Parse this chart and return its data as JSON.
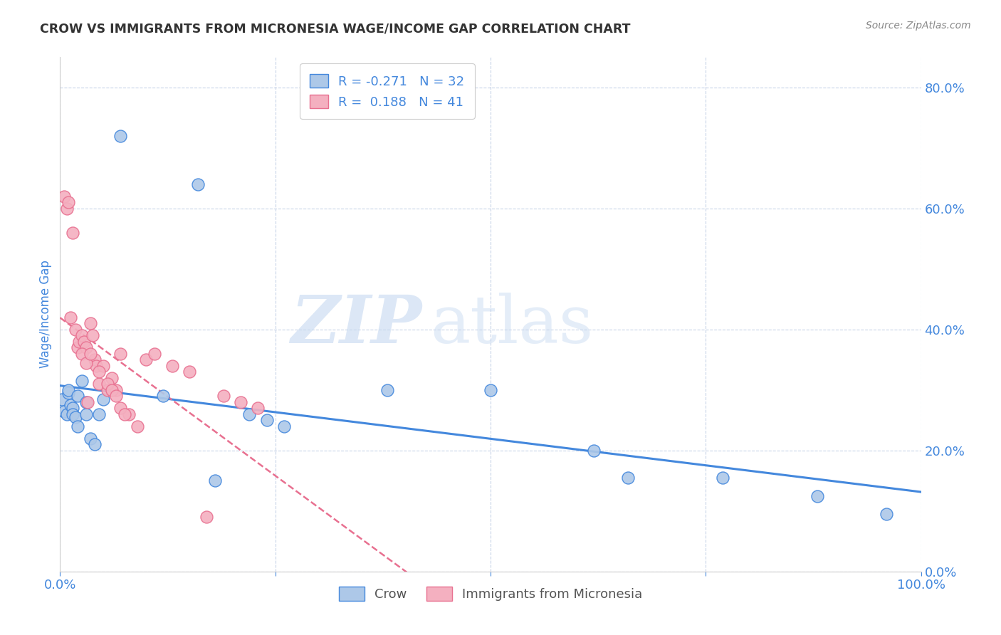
{
  "title": "CROW VS IMMIGRANTS FROM MICRONESIA WAGE/INCOME GAP CORRELATION CHART",
  "source": "Source: ZipAtlas.com",
  "ylabel": "Wage/Income Gap",
  "crow_R": -0.271,
  "crow_N": 32,
  "micronesia_R": 0.188,
  "micronesia_N": 41,
  "crow_color": "#adc8e8",
  "micronesia_color": "#f4b0c0",
  "crow_line_color": "#4488dd",
  "micronesia_line_color": "#e87090",
  "title_color": "#333333",
  "axis_label_color": "#4488dd",
  "tick_color": "#4488dd",
  "grid_color": "#c8d4e8",
  "background_color": "#ffffff",
  "crow_scatter_x": [
    0.002,
    0.005,
    0.008,
    0.01,
    0.01,
    0.012,
    0.015,
    0.015,
    0.018,
    0.02,
    0.02,
    0.025,
    0.03,
    0.03,
    0.035,
    0.04,
    0.045,
    0.05,
    0.07,
    0.12,
    0.16,
    0.18,
    0.22,
    0.24,
    0.26,
    0.38,
    0.5,
    0.62,
    0.66,
    0.77,
    0.88,
    0.96
  ],
  "crow_scatter_y": [
    0.285,
    0.265,
    0.26,
    0.295,
    0.3,
    0.275,
    0.27,
    0.26,
    0.255,
    0.29,
    0.24,
    0.315,
    0.26,
    0.28,
    0.22,
    0.21,
    0.26,
    0.285,
    0.72,
    0.29,
    0.64,
    0.15,
    0.26,
    0.25,
    0.24,
    0.3,
    0.3,
    0.2,
    0.155,
    0.155,
    0.125,
    0.095
  ],
  "micronesia_scatter_x": [
    0.005,
    0.008,
    0.01,
    0.012,
    0.015,
    0.018,
    0.02,
    0.022,
    0.025,
    0.028,
    0.03,
    0.032,
    0.035,
    0.038,
    0.04,
    0.042,
    0.045,
    0.05,
    0.055,
    0.06,
    0.065,
    0.07,
    0.08,
    0.09,
    0.1,
    0.11,
    0.13,
    0.15,
    0.17,
    0.19,
    0.21,
    0.23,
    0.025,
    0.03,
    0.035,
    0.045,
    0.055,
    0.06,
    0.065,
    0.07,
    0.075
  ],
  "micronesia_scatter_y": [
    0.62,
    0.6,
    0.61,
    0.42,
    0.56,
    0.4,
    0.37,
    0.38,
    0.39,
    0.38,
    0.37,
    0.28,
    0.41,
    0.39,
    0.35,
    0.34,
    0.31,
    0.34,
    0.3,
    0.32,
    0.3,
    0.36,
    0.26,
    0.24,
    0.35,
    0.36,
    0.34,
    0.33,
    0.09,
    0.29,
    0.28,
    0.27,
    0.36,
    0.345,
    0.36,
    0.33,
    0.31,
    0.3,
    0.29,
    0.27,
    0.26
  ],
  "xlim": [
    0.0,
    1.0
  ],
  "ylim": [
    0.0,
    0.85
  ],
  "yticks": [
    0.0,
    0.2,
    0.4,
    0.6,
    0.8
  ],
  "ytick_labels": [
    "0.0%",
    "20.0%",
    "40.0%",
    "60.0%",
    "80.0%"
  ],
  "xticks": [
    0.0,
    0.25,
    0.5,
    0.75,
    1.0
  ],
  "xtick_labels": [
    "0.0%",
    "",
    "",
    "",
    "100.0%"
  ],
  "watermark_zip": "ZIP",
  "watermark_atlas": "atlas",
  "legend_crow_label": "Crow",
  "legend_micronesia_label": "Immigrants from Micronesia"
}
